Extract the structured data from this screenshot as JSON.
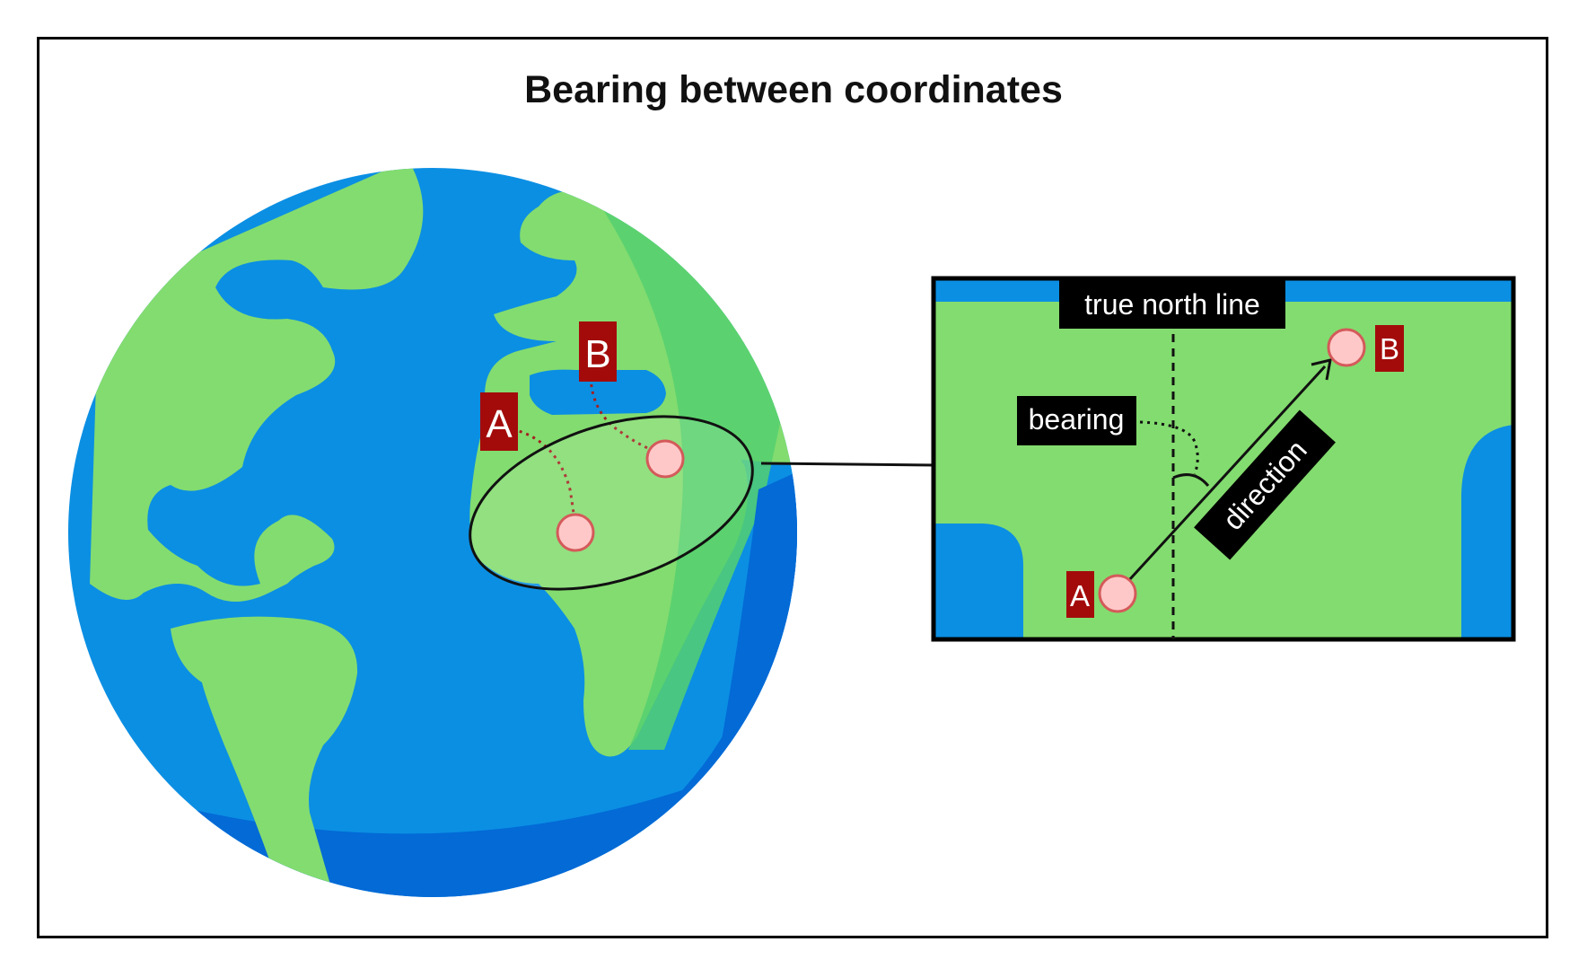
{
  "title": "Bearing between coordinates",
  "globe": {
    "point_a_label": "A",
    "point_b_label": "B"
  },
  "zoom": {
    "north_label": "true north line",
    "bearing_label": "bearing",
    "direction_label": "direction",
    "point_a_label": "A",
    "point_b_label": "B"
  },
  "colors": {
    "ocean": "#0b8fe3",
    "ocean_dark": "#036ad6",
    "land": "#83dc6f",
    "land_shade": "#55d070",
    "label_bg": "#a30b0b",
    "point_fill": "#ffc8c8",
    "point_stroke": "#d45a5a",
    "dotted_path": "#a31f1f"
  }
}
